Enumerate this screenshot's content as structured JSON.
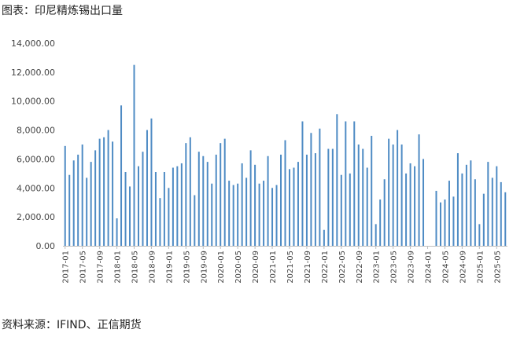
{
  "header": {
    "title": "图表：印尼精炼锡出口量"
  },
  "footer": {
    "source": "资料来源：IFIND、正信期货"
  },
  "colors": {
    "bar": "#4e8bc4",
    "axis": "#bfbfbf",
    "text": "#444444"
  },
  "chart_data": {
    "type": "bar",
    "title": "",
    "xlabel": "",
    "ylabel": "",
    "ylim": [
      0,
      14000
    ],
    "yticks": [
      "0.00",
      "2,000.00",
      "4,000.00",
      "6,000.00",
      "8,000.00",
      "10,000.00",
      "12,000.00",
      "14,000.00"
    ],
    "xtick_labels": [
      "2017-01",
      "2017-05",
      "2017-09",
      "2018-01",
      "2018-05",
      "2018-09",
      "2019-01",
      "2019-05",
      "2019-09",
      "2020-01",
      "2020-05",
      "2020-09",
      "2021-01",
      "2021-05",
      "2021-09",
      "2022-01",
      "2022-05",
      "2022-09",
      "2023-01",
      "2023-05",
      "2023-09",
      "2024-01",
      "2024-05",
      "2024-09",
      "2025-01",
      "2025-05"
    ],
    "grid": false,
    "legend": "none",
    "categories": [
      "2017-01",
      "2017-02",
      "2017-03",
      "2017-04",
      "2017-05",
      "2017-06",
      "2017-07",
      "2017-08",
      "2017-09",
      "2017-10",
      "2017-11",
      "2017-12",
      "2018-01",
      "2018-02",
      "2018-03",
      "2018-04",
      "2018-05",
      "2018-06",
      "2018-07",
      "2018-08",
      "2018-09",
      "2018-10",
      "2018-11",
      "2018-12",
      "2019-01",
      "2019-02",
      "2019-03",
      "2019-04",
      "2019-05",
      "2019-06",
      "2019-07",
      "2019-08",
      "2019-09",
      "2019-10",
      "2019-11",
      "2019-12",
      "2020-01",
      "2020-02",
      "2020-03",
      "2020-04",
      "2020-05",
      "2020-06",
      "2020-07",
      "2020-08",
      "2020-09",
      "2020-10",
      "2020-11",
      "2020-12",
      "2021-01",
      "2021-02",
      "2021-03",
      "2021-04",
      "2021-05",
      "2021-06",
      "2021-07",
      "2021-08",
      "2021-09",
      "2021-10",
      "2021-11",
      "2021-12",
      "2022-01",
      "2022-02",
      "2022-03",
      "2022-04",
      "2022-05",
      "2022-06",
      "2022-07",
      "2022-08",
      "2022-09",
      "2022-10",
      "2022-11",
      "2022-12",
      "2023-01",
      "2023-02",
      "2023-03",
      "2023-04",
      "2023-05",
      "2023-06",
      "2023-07",
      "2023-08",
      "2023-09",
      "2023-10",
      "2023-11",
      "2023-12",
      "2024-01",
      "2024-02",
      "2024-03",
      "2024-04",
      "2024-05",
      "2024-06",
      "2024-07",
      "2024-08",
      "2024-09",
      "2024-10",
      "2024-11",
      "2024-12",
      "2025-01",
      "2025-02",
      "2025-03",
      "2025-04",
      "2025-05",
      "2025-06",
      "2025-07"
    ],
    "values": [
      6900,
      4900,
      5900,
      6300,
      7000,
      4700,
      5800,
      6600,
      7400,
      7500,
      8000,
      7200,
      1900,
      9700,
      5100,
      4100,
      12500,
      5500,
      6500,
      8000,
      8800,
      5100,
      3300,
      5100,
      4000,
      5400,
      5500,
      5700,
      7100,
      7500,
      3500,
      6500,
      6200,
      5800,
      4300,
      6300,
      7100,
      7400,
      4500,
      4200,
      4300,
      5700,
      4700,
      6600,
      5600,
      4300,
      4500,
      6200,
      4000,
      4200,
      6300,
      7300,
      5300,
      5400,
      5800,
      8600,
      6300,
      7800,
      6400,
      8100,
      1100,
      6700,
      6700,
      9100,
      4900,
      8600,
      5000,
      8600,
      7000,
      6700,
      5400,
      7600,
      1500,
      3200,
      4600,
      7400,
      7000,
      8000,
      7000,
      5000,
      5700,
      5500,
      7700,
      6000,
      0,
      0,
      3800,
      3000,
      3200,
      4500,
      3400,
      6400,
      5000,
      5600,
      5900,
      4600,
      1500,
      3600,
      5800,
      4700,
      5500,
      4400,
      3700
    ]
  }
}
